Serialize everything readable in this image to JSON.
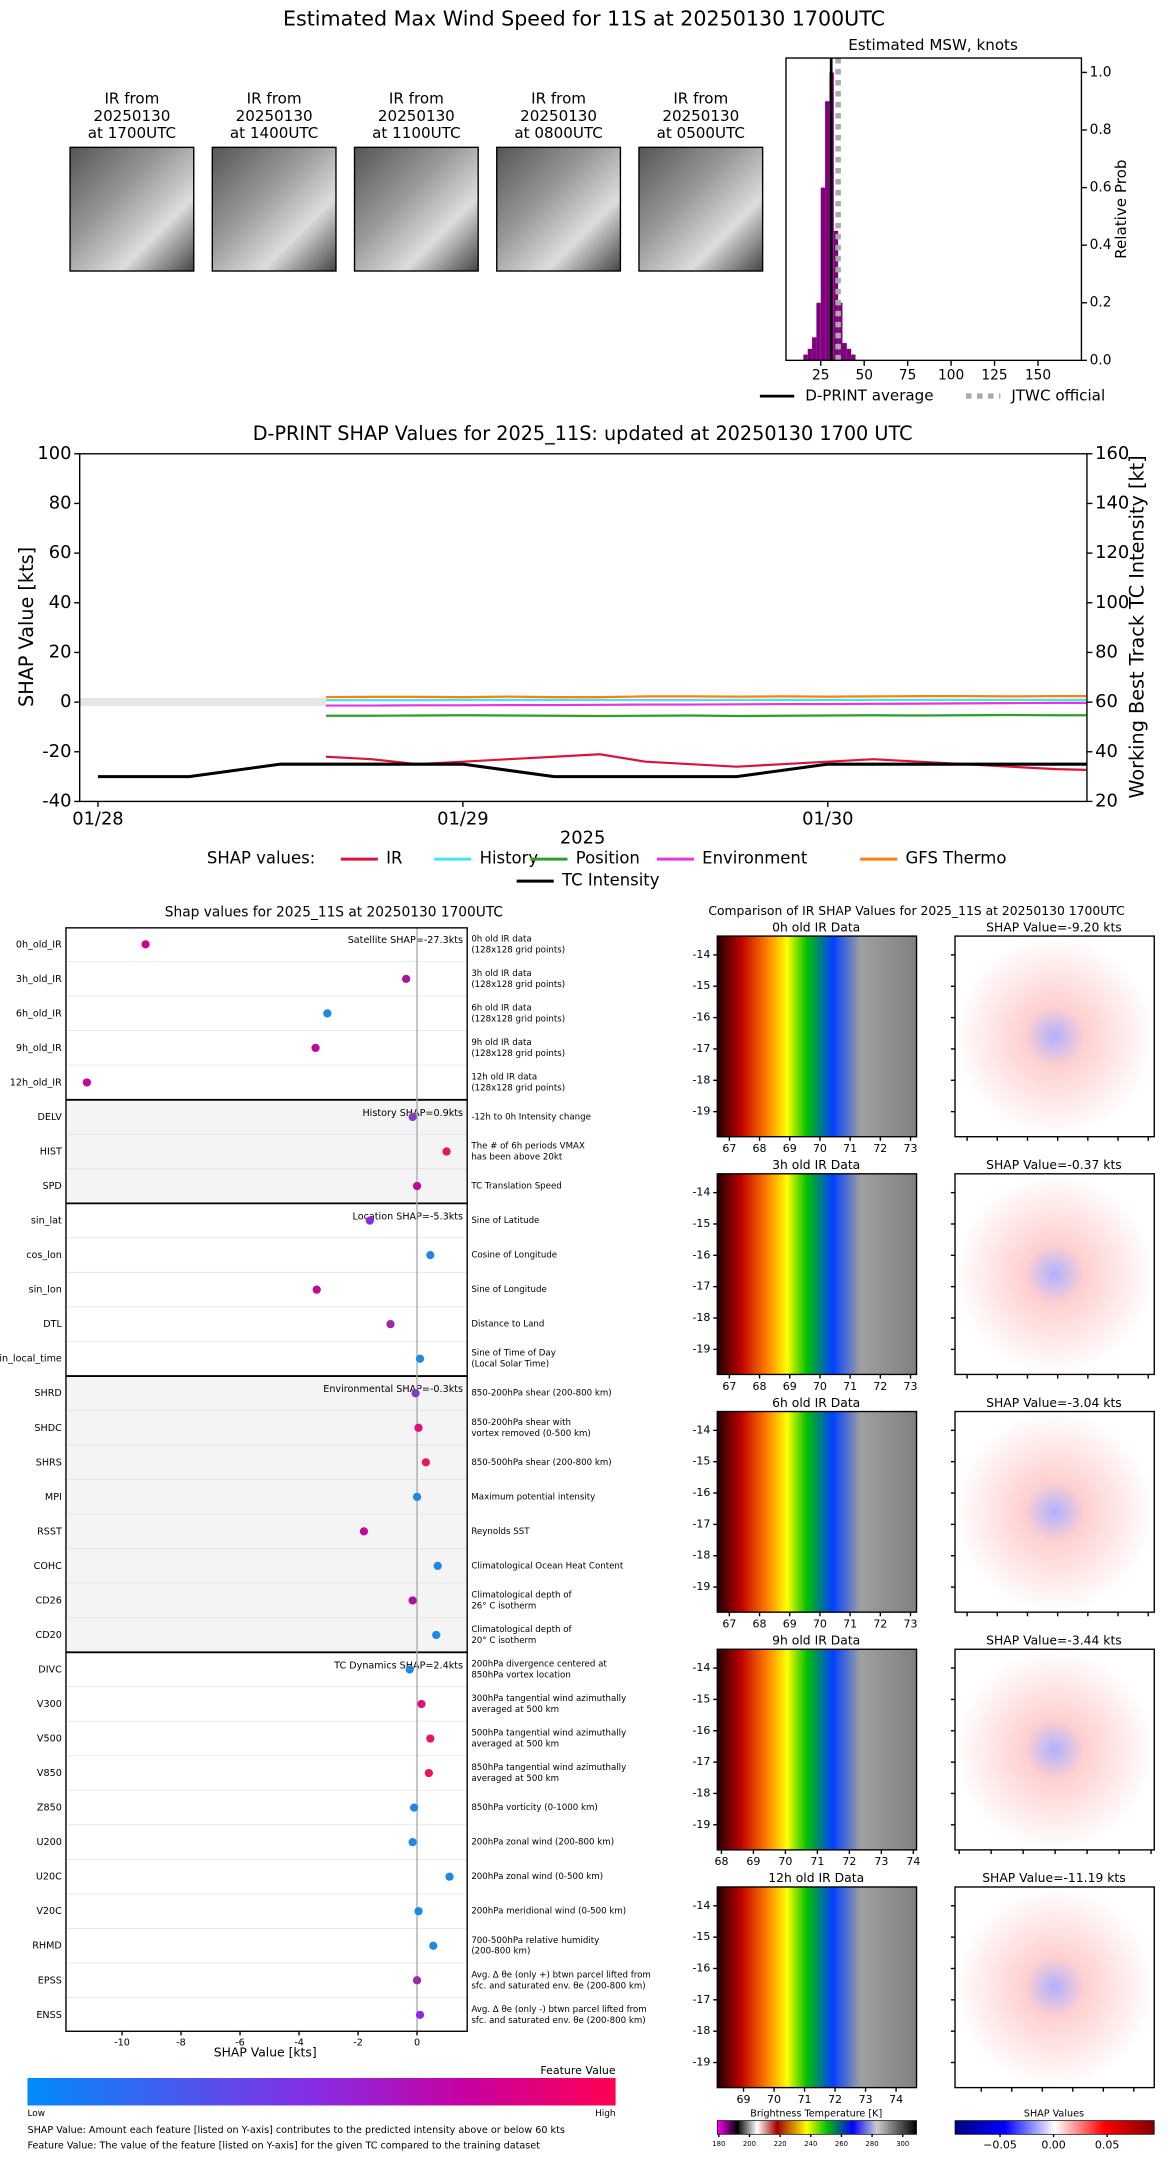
{
  "title": "Estimated Max Wind Speed for 11S at 20250130 1700UTC",
  "thumbnails": [
    {
      "label": [
        "IR from",
        "20250130",
        "at 1700UTC"
      ]
    },
    {
      "label": [
        "IR from",
        "20250130",
        "at 1400UTC"
      ]
    },
    {
      "label": [
        "IR from",
        "20250130",
        "at 1100UTC"
      ]
    },
    {
      "label": [
        "IR from",
        "20250130",
        "at 0800UTC"
      ]
    },
    {
      "label": [
        "IR from",
        "20250130",
        "at 0500UTC"
      ]
    }
  ],
  "chart_data": [
    {
      "type": "histogram",
      "title": "Estimated MSW, knots",
      "y2label": "Relative Prob",
      "bins": [
        15,
        17.5,
        20,
        22.5,
        25,
        27.5,
        30,
        32.5,
        35,
        37.5,
        40,
        42.5,
        45
      ],
      "values": [
        0.02,
        0.04,
        0.08,
        0.2,
        0.6,
        0.9,
        1.0,
        0.45,
        0.2,
        0.06,
        0.04,
        0.02
      ],
      "color": "#800080",
      "xlim": [
        5,
        175
      ],
      "xticks": [
        25,
        50,
        75,
        100,
        125,
        150
      ],
      "y2lim": [
        0,
        1.05
      ],
      "y2ticks": [
        {
          "value": 0,
          "label": "0.0"
        },
        {
          "value": 0.2,
          "label": "0.2"
        },
        {
          "value": 0.4,
          "label": "0.4"
        },
        {
          "value": 0.6,
          "label": "0.6"
        },
        {
          "value": 0.8,
          "label": "0.8"
        },
        {
          "value": 1,
          "label": "1.0"
        }
      ],
      "lines": [
        {
          "name": "D-PRINT average",
          "value": 31,
          "color": "#000000",
          "style": "solid"
        },
        {
          "name": "JTWC official",
          "value": 35,
          "color": "#aaaaaa",
          "style": "dotted"
        }
      ]
    },
    {
      "type": "line",
      "title": "D-PRINT SHAP Values for 2025_11S: updated at 20250130 1700 UTC",
      "xlabel": "2025",
      "ylabel": "SHAP Value [kts]",
      "y2label": "Working Best Track TC Intensity [kt]",
      "x": [
        28.625,
        28.75,
        28.875,
        29,
        29.125,
        29.25,
        29.375,
        29.5,
        29.625,
        29.75,
        29.875,
        30,
        30.125,
        30.25,
        30.375,
        30.5,
        30.625,
        30.708
      ],
      "xlim": [
        27.95,
        30.71
      ],
      "xticks": [
        {
          "value": 28,
          "label": "01/28"
        },
        {
          "value": 29,
          "label": "01/29"
        },
        {
          "value": 30,
          "label": "01/30"
        }
      ],
      "ylim": [
        -40,
        100
      ],
      "yticks": [
        -40,
        -20,
        0,
        20,
        40,
        60,
        80,
        100
      ],
      "y2lim": [
        20,
        160
      ],
      "y2ticks": [
        20,
        40,
        60,
        80,
        100,
        120,
        140,
        160
      ],
      "legend_title": "SHAP values:",
      "series": [
        {
          "name": "IR",
          "color": "#dc143c",
          "values": [
            -22,
            -23,
            -25,
            -24,
            -23,
            -22,
            -21,
            -24,
            -25,
            -26,
            -25,
            -24,
            -23,
            -24,
            -25,
            -26,
            -27,
            -27.3
          ]
        },
        {
          "name": "History",
          "color": "#40e8e8",
          "values": [
            0.8,
            0.8,
            0.8,
            0.9,
            0.9,
            0.9,
            0.9,
            0.8,
            0.8,
            0.9,
            0.9,
            0.9,
            0.9,
            0.9,
            0.9,
            0.9,
            0.9,
            0.9
          ]
        },
        {
          "name": "Position",
          "color": "#2ca02c",
          "values": [
            -5.5,
            -5.5,
            -5.4,
            -5.3,
            -5.4,
            -5.5,
            -5.6,
            -5.5,
            -5.4,
            -5.6,
            -5.5,
            -5.4,
            -5.3,
            -5.4,
            -5.3,
            -5.2,
            -5.3,
            -5.3
          ]
        },
        {
          "name": "Environment",
          "color": "#e633e6",
          "values": [
            -1.4,
            -1.4,
            -1.3,
            -1.3,
            -1.2,
            -1.2,
            -1.1,
            -1,
            -1,
            -0.9,
            -0.8,
            -0.8,
            -0.7,
            -0.6,
            -0.5,
            -0.4,
            -0.3,
            -0.3
          ]
        },
        {
          "name": "GFS Thermo",
          "color": "#ff7f0e",
          "values": [
            2,
            2.1,
            2.1,
            2,
            2.2,
            2,
            2,
            2.3,
            2.3,
            2.2,
            2.3,
            2.2,
            2.3,
            2.4,
            2.4,
            2.3,
            2.4,
            2.4
          ]
        },
        {
          "name": "TC Intensity",
          "color": "#000000",
          "axis": "y2",
          "x": [
            28,
            28.25,
            28.5,
            29,
            29.25,
            29.75,
            30,
            30.71
          ],
          "values": [
            30,
            30,
            35,
            35,
            30,
            30,
            35,
            35
          ]
        }
      ]
    },
    {
      "type": "dot",
      "title": "Shap values for 2025_11S at 20250130 1700UTC",
      "xlabel": "SHAP Value [kts]",
      "xlim": [
        -11.9,
        1.7
      ],
      "xticks": [
        -10,
        -8,
        -6,
        -4,
        -2,
        0
      ],
      "groups": [
        {
          "label": "Satellite SHAP=-27.3kts",
          "features": [
            {
              "name": "0h_old_IR",
              "description": [
                "0h old IR data",
                "(128x128 grid points)"
              ],
              "value": -9.2,
              "color": "#d1008f"
            },
            {
              "name": "3h_old_IR",
              "description": [
                "3h old IR data",
                "(128x128 grid points)"
              ],
              "value": -0.37,
              "color": "#a8159f"
            },
            {
              "name": "6h_old_IR",
              "description": [
                "6h old IR data",
                "(128x128 grid points)"
              ],
              "value": -3.04,
              "color": "#1e88e5"
            },
            {
              "name": "9h_old_IR",
              "description": [
                "9h old IR data",
                "(128x128 grid points)"
              ],
              "value": -3.44,
              "color": "#c4069a"
            },
            {
              "name": "12h_old_IR",
              "description": [
                "12h old IR data",
                "(128x128 grid points)"
              ],
              "value": -11.19,
              "color": "#c4069a"
            }
          ]
        },
        {
          "label": "History SHAP=0.9kts",
          "features": [
            {
              "name": "DELV",
              "description": [
                "-12h to 0h Intensity change"
              ],
              "value": -0.15,
              "color": "#7f3fbf"
            },
            {
              "name": "HIST",
              "description": [
                "The # of 6h periods VMAX",
                "has been above 20kt"
              ],
              "value": 1.0,
              "color": "#e8155e"
            },
            {
              "name": "SPD",
              "description": [
                "TC Translation Speed"
              ],
              "value": 0,
              "color": "#c4069a"
            }
          ]
        },
        {
          "label": "Location SHAP=-5.3kts",
          "features": [
            {
              "name": "sin_lat",
              "description": [
                "Sine of Latitude"
              ],
              "value": -1.6,
              "color": "#8a2be2"
            },
            {
              "name": "cos_lon",
              "description": [
                "Cosine of Longitude"
              ],
              "value": 0.45,
              "color": "#1e88e5"
            },
            {
              "name": "sin_lon",
              "description": [
                "Sine of Longitude"
              ],
              "value": -3.4,
              "color": "#c4069a"
            },
            {
              "name": "DTL",
              "description": [
                "Distance to Land"
              ],
              "value": -0.9,
              "color": "#9a2aaa"
            },
            {
              "name": "sin_local_time",
              "description": [
                "Sine of Time of Day",
                "(Local Solar Time)"
              ],
              "value": 0.1,
              "color": "#1e88e5"
            }
          ]
        },
        {
          "label": "Environmental SHAP=-0.3kts",
          "features": [
            {
              "name": "SHRD",
              "description": [
                "850-200hPa shear (200-800 km)"
              ],
              "value": -0.05,
              "color": "#7f3fbf"
            },
            {
              "name": "SHDC",
              "description": [
                "850-200hPa shear with",
                "vortex removed (0-500 km)"
              ],
              "value": 0.05,
              "color": "#e0107a"
            },
            {
              "name": "SHRS",
              "description": [
                "850-500hPa shear (200-800 km)"
              ],
              "value": 0.3,
              "color": "#e8155e"
            },
            {
              "name": "MPI",
              "description": [
                "Maximum potential intensity"
              ],
              "value": 0,
              "color": "#1e88e5"
            },
            {
              "name": "RSST",
              "description": [
                "Reynolds SST"
              ],
              "value": -1.8,
              "color": "#c4069a"
            },
            {
              "name": "COHC",
              "description": [
                "Climatological Ocean Heat Content"
              ],
              "value": 0.7,
              "color": "#1e88e5"
            },
            {
              "name": "CD26",
              "description": [
                "Climatological depth of",
                "26° C isotherm"
              ],
              "value": -0.15,
              "color": "#b0109f"
            },
            {
              "name": "CD20",
              "description": [
                "Climatological depth of",
                "20° C isotherm"
              ],
              "value": 0.65,
              "color": "#1e88e5"
            }
          ]
        },
        {
          "label": "TC Dynamics SHAP=2.4kts",
          "features": [
            {
              "name": "DIVC",
              "description": [
                "200hPa divergence centered at",
                "850hPa vortex location"
              ],
              "value": -0.25,
              "color": "#1e88e5"
            },
            {
              "name": "V300",
              "description": [
                "300hPa tangential wind azimuthally",
                "averaged at 500 km"
              ],
              "value": 0.15,
              "color": "#e0107a"
            },
            {
              "name": "V500",
              "description": [
                "500hPa tangential wind azimuthally",
                "averaged at 500 km"
              ],
              "value": 0.45,
              "color": "#e8155e"
            },
            {
              "name": "V850",
              "description": [
                "850hPa tangential wind azimuthally",
                "averaged at 500 km"
              ],
              "value": 0.4,
              "color": "#e8155e"
            },
            {
              "name": "Z850",
              "description": [
                "850hPa vorticity (0-1000 km)"
              ],
              "value": -0.1,
              "color": "#1e88e5"
            },
            {
              "name": "U200",
              "description": [
                "200hPa zonal wind (200-800 km)"
              ],
              "value": -0.15,
              "color": "#1e88e5"
            },
            {
              "name": "U20C",
              "description": [
                "200hPa zonal wind (0-500 km)"
              ],
              "value": 1.1,
              "color": "#1e88e5"
            },
            {
              "name": "V20C",
              "description": [
                "200hPa meridional wind (0-500 km)"
              ],
              "value": 0.05,
              "color": "#1e88e5"
            },
            {
              "name": "RHMD",
              "description": [
                "700-500hPa relative humidity",
                "(200-800 km)"
              ],
              "value": 0.55,
              "color": "#1e88e5"
            },
            {
              "name": "EPSS",
              "description": [
                "Avg. Δ θe (only +) btwn parcel lifted from",
                "sfc. and saturated env. θe (200-800 km)"
              ],
              "value": 0,
              "color": "#9a2aaa"
            },
            {
              "name": "ENSS",
              "description": [
                "Avg. Δ θe (only -) btwn parcel lifted from",
                "sfc. and saturated env. θe (200-800 km)"
              ],
              "value": 0.1,
              "color": "#8a2be2"
            }
          ]
        }
      ],
      "colorbar": {
        "label": "Feature Value",
        "low": "Low",
        "high": "High"
      },
      "notes": [
        "SHAP Value: Amount each feature [listed on Y-axis] contributes to the predicted intensity above or below 60 kts",
        "Feature Value: The value of the feature [listed on Y-axis] for the given TC compared to the training dataset"
      ]
    },
    {
      "type": "image_grid",
      "title": "Comparison of IR SHAP Values for 2025_11S at 20250130 1700UTC",
      "panels": [
        {
          "title": "0h old IR Data",
          "shap_title": "SHAP Value=-9.20 kts",
          "xlim": [
            66.6,
            73.2
          ],
          "xticks": [
            67,
            68,
            69,
            70,
            71,
            72,
            73
          ],
          "ylim": [
            -19.8,
            -13.4
          ],
          "yticks": [
            -14,
            -15,
            -16,
            -17,
            -18,
            -19
          ]
        },
        {
          "title": "3h old IR Data",
          "shap_title": "SHAP Value=-0.37 kts",
          "xlim": [
            66.6,
            73.2
          ],
          "xticks": [
            67,
            68,
            69,
            70,
            71,
            72,
            73
          ],
          "ylim": [
            -19.8,
            -13.4
          ],
          "yticks": [
            -14,
            -15,
            -16,
            -17,
            -18,
            -19
          ]
        },
        {
          "title": "6h old IR Data",
          "shap_title": "SHAP Value=-3.04 kts",
          "xlim": [
            66.6,
            73.2
          ],
          "xticks": [
            67,
            68,
            69,
            70,
            71,
            72,
            73
          ],
          "ylim": [
            -19.8,
            -13.4
          ],
          "yticks": [
            -14,
            -15,
            -16,
            -17,
            -18,
            -19
          ]
        },
        {
          "title": "9h old IR Data",
          "shap_title": "SHAP Value=-3.44 kts",
          "xlim": [
            67.87,
            74.1
          ],
          "xticks": [
            68,
            69,
            70,
            71,
            72,
            73,
            74
          ],
          "ylim": [
            -19.8,
            -13.4
          ],
          "yticks": [
            -14,
            -15,
            -16,
            -17,
            -18,
            -19
          ]
        },
        {
          "title": "12h old IR Data",
          "shap_title": "SHAP Value=-11.19 kts",
          "xlim": [
            68.14,
            74.67
          ],
          "xticks": [
            69,
            70,
            71,
            72,
            73,
            74
          ],
          "ylim": [
            -19.8,
            -13.4
          ],
          "yticks": [
            -14,
            -15,
            -16,
            -17,
            -18,
            -19
          ]
        }
      ],
      "bt_colorbar": {
        "label": "Brightness Temperature [K]",
        "lim": [
          179,
          309
        ],
        "ticks": [
          180,
          200,
          220,
          240,
          260,
          280,
          300
        ]
      },
      "shap_colorbar": {
        "label": "SHAP Values",
        "lim": [
          -0.092,
          0.094
        ],
        "ticks": [
          {
            "value": -0.05,
            "label": "−0.05"
          },
          {
            "value": 0,
            "label": "0.00"
          },
          {
            "value": 0.05,
            "label": "0.05"
          }
        ]
      }
    }
  ]
}
